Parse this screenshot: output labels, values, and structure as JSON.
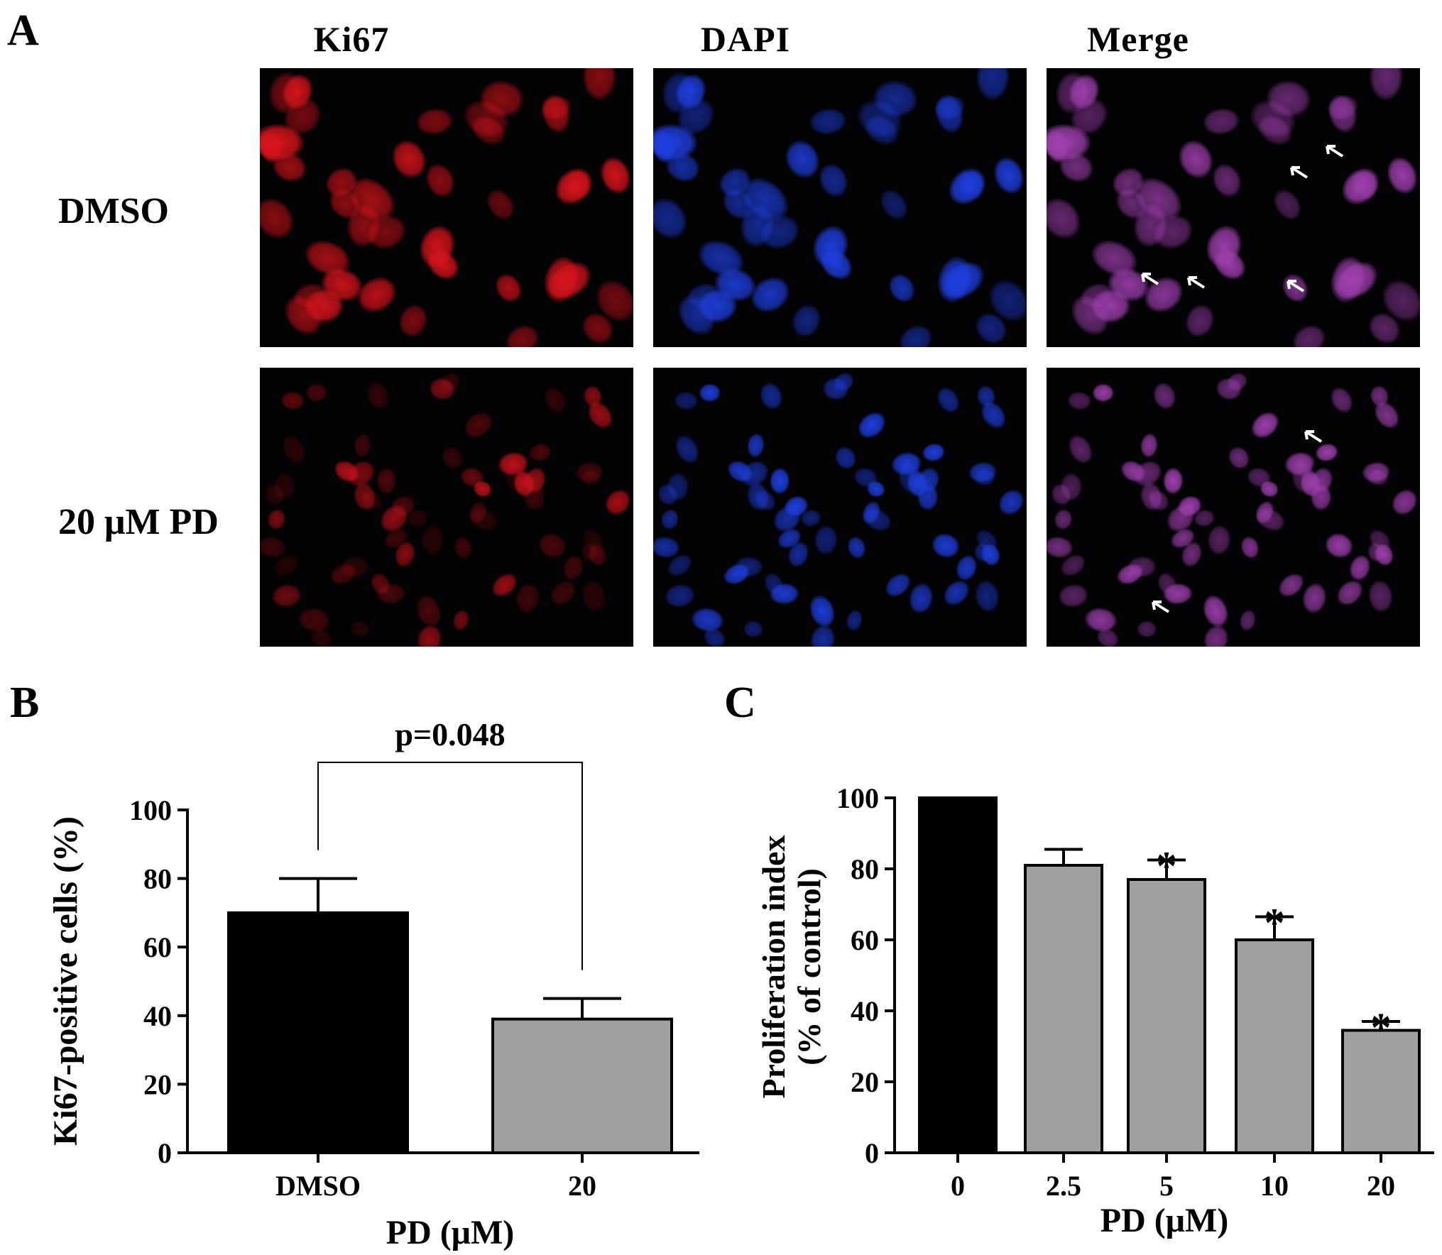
{
  "panel_a": {
    "letter": "A",
    "columns": [
      "Ki67",
      "DAPI",
      "Merge"
    ],
    "rows": [
      "DMSO",
      "20 μM PD"
    ],
    "colors": {
      "ki67": "#d8141c",
      "dapi": "#1f3fe0",
      "merge": "#a040b0",
      "background": "#020103"
    }
  },
  "chart_data": [
    {
      "panel": "B",
      "type": "bar",
      "categories": [
        "DMSO",
        "20"
      ],
      "values": [
        70,
        39
      ],
      "errors": [
        10,
        6
      ],
      "bar_colors": [
        "#000000",
        "#a0a0a0"
      ],
      "ylabel": "Ki67-positive cells (%)",
      "xlabel": "PD (μM)",
      "ylim": [
        0,
        100
      ],
      "yticks": [
        0,
        20,
        40,
        60,
        80,
        100
      ],
      "annotation": "p=0.048"
    },
    {
      "panel": "C",
      "type": "bar",
      "categories": [
        "0",
        "2.5",
        "5",
        "10",
        "20"
      ],
      "values": [
        100,
        81,
        77,
        60,
        34.5
      ],
      "errors": [
        0,
        4.5,
        5.5,
        6.5,
        2.5
      ],
      "significance": [
        "",
        "",
        "*",
        "*",
        "*"
      ],
      "bar_colors": [
        "#000000",
        "#a0a0a0",
        "#a0a0a0",
        "#a0a0a0",
        "#a0a0a0"
      ],
      "ylabel_lines": [
        "Proliferation index",
        "(% of control)"
      ],
      "xlabel": "PD (μM)",
      "ylim": [
        0,
        100
      ],
      "yticks": [
        0,
        20,
        40,
        60,
        80,
        100
      ]
    }
  ]
}
